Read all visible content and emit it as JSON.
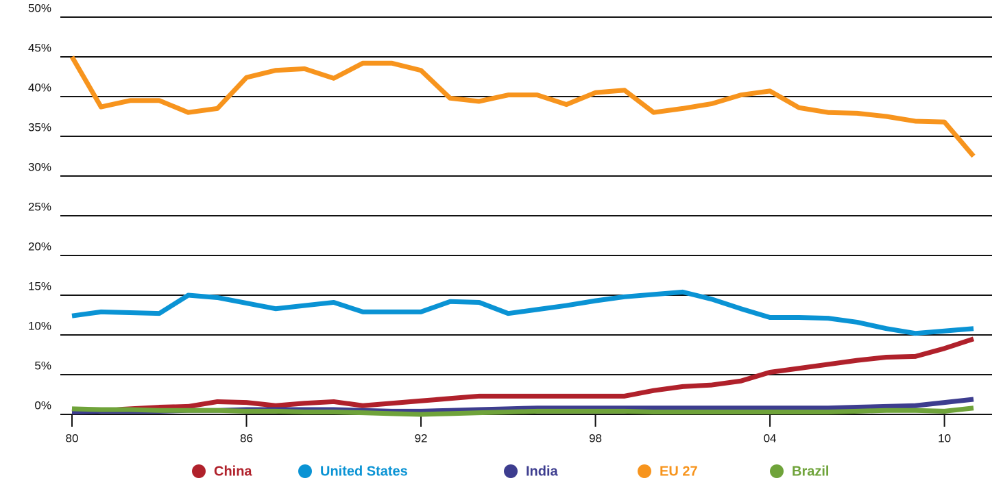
{
  "chart_data": {
    "type": "line",
    "categories": [
      "80",
      null,
      null,
      null,
      null,
      null,
      "86",
      null,
      null,
      null,
      null,
      null,
      "92",
      null,
      null,
      null,
      null,
      null,
      "98",
      null,
      null,
      null,
      null,
      null,
      "04",
      null,
      null,
      null,
      null,
      null,
      "10",
      null
    ],
    "series": [
      {
        "name": "China",
        "color": "#b0212b",
        "values": [
          0.3,
          0.5,
          0.7,
          0.9,
          1,
          1.6,
          1.5,
          1.1,
          1.4,
          1.6,
          1.1,
          1.4,
          1.7,
          2,
          2.3,
          2.3,
          2.3,
          2.3,
          2.3,
          2.3,
          3,
          3.5,
          3.7,
          4.2,
          5.3,
          5.8,
          6.3,
          6.8,
          7.2,
          7.3,
          8.3,
          9.5
        ]
      },
      {
        "name": "United States",
        "color": "#0a93d4",
        "values": [
          12.4,
          12.9,
          12.8,
          12.7,
          15,
          14.7,
          14,
          13.3,
          13.7,
          14.1,
          12.9,
          12.9,
          12.9,
          14.2,
          14.1,
          12.7,
          13.2,
          13.7,
          14.3,
          14.8,
          15.1,
          15.4,
          14.5,
          13.3,
          12.2,
          12.2,
          12.1,
          11.6,
          10.8,
          10.2,
          10.5,
          10.8
        ]
      },
      {
        "name": "India",
        "color": "#3d3d8f",
        "values": [
          0.3,
          0.4,
          0.4,
          0.4,
          0.5,
          0.5,
          0.6,
          0.6,
          0.6,
          0.6,
          0.5,
          0.4,
          0.4,
          0.5,
          0.6,
          0.7,
          0.8,
          0.8,
          0.8,
          0.8,
          0.8,
          0.8,
          0.8,
          0.8,
          0.8,
          0.8,
          0.8,
          0.9,
          1,
          1.1,
          1.5,
          1.9
        ]
      },
      {
        "name": "EU 27",
        "color": "#f7941d",
        "values": [
          45,
          38.7,
          39.5,
          39.5,
          38,
          38.5,
          42.4,
          43.3,
          43.5,
          42.3,
          44.2,
          44.2,
          43.3,
          39.8,
          39.4,
          40.2,
          40.2,
          39,
          40.5,
          40.8,
          38,
          38.5,
          39.1,
          40.2,
          40.7,
          38.6,
          38,
          37.9,
          37.5,
          36.9,
          36.8,
          32.5
        ]
      },
      {
        "name": "Brazil",
        "color": "#6fa33a",
        "values": [
          0.7,
          0.6,
          0.6,
          0.5,
          0.5,
          0.5,
          0.4,
          0.4,
          0.3,
          0.3,
          0.2,
          0.1,
          0,
          0.1,
          0.2,
          0.3,
          0.4,
          0.4,
          0.4,
          0.4,
          0.3,
          0.3,
          0.3,
          0.3,
          0.3,
          0.3,
          0.3,
          0.4,
          0.5,
          0.5,
          0.4,
          0.8
        ]
      }
    ],
    "ylim": [
      0,
      50
    ],
    "yticks": [
      {
        "value": 0,
        "label": "0%"
      },
      {
        "value": 5,
        "label": "5%"
      },
      {
        "value": 10,
        "label": "10%"
      },
      {
        "value": 15,
        "label": "15%"
      },
      {
        "value": 20,
        "label": "20%"
      },
      {
        "value": 25,
        "label": "25%"
      },
      {
        "value": 30,
        "label": "30%"
      },
      {
        "value": 35,
        "label": "35%"
      },
      {
        "value": 40,
        "label": "40%"
      },
      {
        "value": 45,
        "label": "45%"
      },
      {
        "value": 50,
        "label": "50%"
      }
    ],
    "grid": true,
    "legend": "bottom"
  }
}
